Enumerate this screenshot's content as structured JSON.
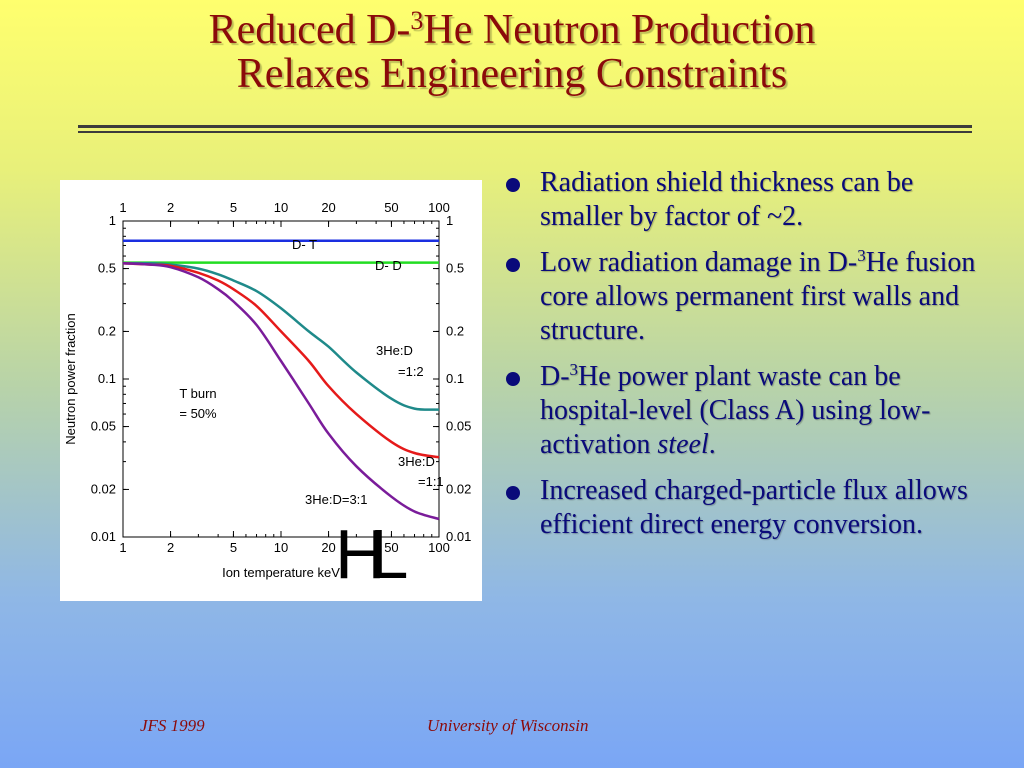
{
  "slide": {
    "title_line1_a": "Reduced D-",
    "title_line1_sup": "3",
    "title_line1_b": "He Neutron Production",
    "title_line2": "Relaxes Engineering Constraints",
    "colors": {
      "title": "#8b0a0a",
      "bullet_text": "#0a0a7a",
      "footer": "#8b0a0a"
    }
  },
  "bullets": [
    {
      "text": "Radiation shield thickness can be smaller by factor of ~2."
    },
    {
      "a": "Low radiation damage in D-",
      "sup": "3",
      "b": "He fusion core allows permanent first walls and structure."
    },
    {
      "a": "D-",
      "sup": "3",
      "b": "He power plant waste can be hospital-level (Class A) using low-activation ",
      "em": "steel",
      "c": "."
    },
    {
      "text": "Increased charged-particle flux allows efficient direct energy conversion."
    }
  ],
  "footer": {
    "left": "JFS 1999",
    "center": "University of Wisconsin"
  },
  "chart_data": {
    "type": "line",
    "x_scale": "log",
    "y_scale": "log",
    "xlim": [
      1,
      100
    ],
    "ylim": [
      0.01,
      1
    ],
    "x_ticks": [
      1,
      2,
      5,
      10,
      20,
      50,
      100
    ],
    "x_tick_labels": [
      "1",
      "2",
      "5",
      "10",
      "20",
      "50",
      "100"
    ],
    "y_ticks": [
      1,
      0.5,
      0.2,
      0.1,
      0.05,
      0.02,
      0.01
    ],
    "y_tick_labels": [
      "1",
      "0.5",
      "0.2",
      "0.1",
      "0.05",
      "0.02",
      "0.01"
    ],
    "xlabel": "Ion temperature keV",
    "ylabel": "Neutron power fraction",
    "annotation": {
      "line1": "T burn",
      "line2": "= 50%"
    },
    "logo_text": "HL",
    "grid": false,
    "series": [
      {
        "name": "D- T",
        "color": "#1a2ee0",
        "label_lines": [
          "D- T"
        ],
        "x": [
          1,
          100
        ],
        "y": [
          0.75,
          0.75
        ]
      },
      {
        "name": "D- D",
        "color": "#22dd22",
        "label_lines": [
          "D- D"
        ],
        "x": [
          1,
          100
        ],
        "y": [
          0.545,
          0.545
        ]
      },
      {
        "name": "3He:D =1:2",
        "color": "#1f8a8a",
        "label_lines": [
          "3He:D",
          "=1:2"
        ],
        "x": [
          1,
          1.5,
          2,
          3,
          4,
          5,
          7,
          10,
          15,
          20,
          30,
          50,
          70,
          100
        ],
        "y": [
          0.54,
          0.54,
          0.53,
          0.5,
          0.46,
          0.42,
          0.36,
          0.28,
          0.2,
          0.16,
          0.11,
          0.075,
          0.065,
          0.064
        ]
      },
      {
        "name": "3He:D =1:1",
        "color": "#e51a1a",
        "label_lines": [
          "3He:D",
          "=1:1"
        ],
        "x": [
          1,
          1.5,
          2,
          3,
          4,
          5,
          7,
          10,
          15,
          20,
          30,
          50,
          70,
          100
        ],
        "y": [
          0.54,
          0.53,
          0.52,
          0.47,
          0.42,
          0.37,
          0.29,
          0.2,
          0.13,
          0.09,
          0.06,
          0.04,
          0.034,
          0.032
        ]
      },
      {
        "name": "3He:D=3:1",
        "color": "#7a1c9a",
        "label_lines": [
          "3He:D=3:1"
        ],
        "x": [
          1,
          1.5,
          2,
          3,
          4,
          5,
          7,
          10,
          15,
          20,
          30,
          50,
          70,
          100
        ],
        "y": [
          0.54,
          0.53,
          0.51,
          0.44,
          0.37,
          0.31,
          0.22,
          0.13,
          0.07,
          0.045,
          0.028,
          0.018,
          0.0145,
          0.013
        ]
      }
    ]
  }
}
